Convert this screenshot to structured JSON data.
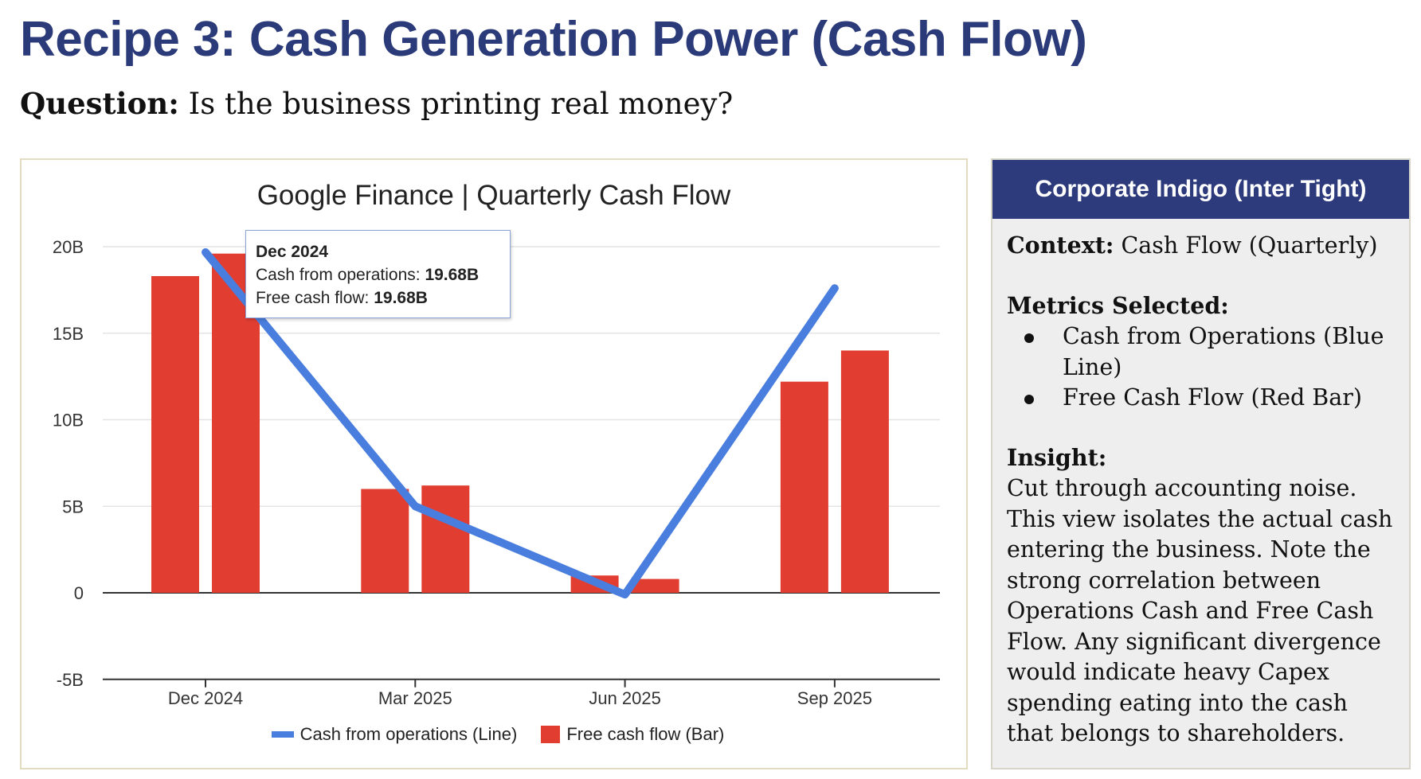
{
  "header": {
    "title": "Recipe 3: Cash Generation Power (Cash Flow)",
    "question_label": "Question:",
    "question_text": " Is the business printing real money?"
  },
  "chart_data": {
    "type": "bar+line",
    "title": "Google Finance | Quarterly Cash Flow",
    "categories": [
      "Dec 2024",
      "Mar 2025",
      "Jun 2025",
      "Sep 2025"
    ],
    "y_ticks": [
      "20B",
      "15B",
      "10B",
      "5B",
      "0",
      "-5B"
    ],
    "y_tick_values": [
      20,
      15,
      10,
      5,
      0,
      -5
    ],
    "ylim": [
      -5,
      20
    ],
    "y_unit": "B",
    "grid": true,
    "legend_position": "bottom",
    "bar_series": [
      {
        "values": [
          18.3,
          6.0,
          1.0,
          12.2
        ],
        "color": "#e23d31"
      },
      {
        "values": [
          19.6,
          6.2,
          0.8,
          14.0
        ],
        "color": "#e23d31"
      }
    ],
    "line_series": {
      "name": "Cash from operations (Line)",
      "values": [
        19.68,
        5.0,
        -0.1,
        17.6
      ],
      "color": "#4a7ede"
    },
    "legend": [
      {
        "label": "Cash from operations (Line)",
        "color": "#4a7ede"
      },
      {
        "label": "Free cash flow (Bar)",
        "color": "#e23d31"
      }
    ],
    "tooltip": {
      "title": "Dec 2024",
      "line1_label": "Cash from operations: ",
      "line1_value": "19.68B",
      "line2_label": "Free cash flow: ",
      "line2_value": "19.68B"
    }
  },
  "panel": {
    "header": "Corporate Indigo (Inter Tight)",
    "context_label": "Context:",
    "context_text": " Cash Flow (Quarterly)",
    "metrics_label": "Metrics Selected:",
    "metrics": [
      "Cash from Operations (Blue Line)",
      "Free Cash Flow (Red Bar)"
    ],
    "insight_label": "Insight:",
    "insight_text": "Cut through accounting noise. This view isolates the actual cash entering the business. Note the strong correlation between Operations Cash and Free Cash Flow. Any significant divergence would indicate heavy Capex spending eating into the cash that belongs to shareholders."
  }
}
